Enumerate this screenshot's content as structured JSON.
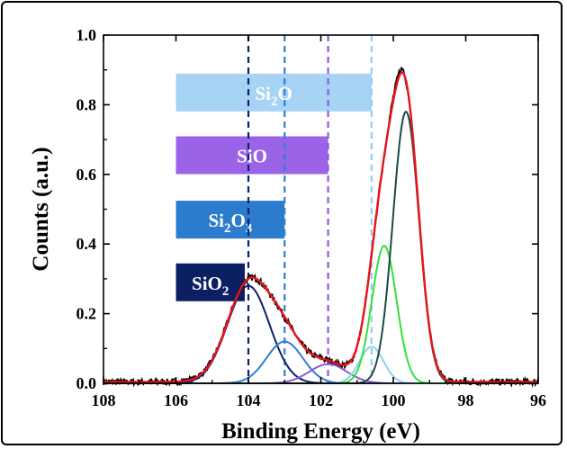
{
  "chart_data": {
    "type": "line",
    "xlabel": "Binding Energy (eV)",
    "ylabel": "Counts (a.u.)",
    "xlim": [
      108,
      96
    ],
    "ylim": [
      0,
      1.0
    ],
    "x_reversed": true,
    "x_ticks": [
      "108",
      "106",
      "104",
      "102",
      "100",
      "98",
      "96"
    ],
    "x_tick_values": [
      108,
      106,
      104,
      102,
      100,
      98,
      96
    ],
    "y_ticks": [
      "0.0",
      "0.2",
      "0.4",
      "0.6",
      "0.8",
      "1.0"
    ],
    "y_tick_values": [
      0.0,
      0.2,
      0.4,
      0.6,
      0.8,
      1.0
    ],
    "grid": false,
    "colors": {
      "raw": "#000000",
      "fit": "#e8141b",
      "sio2": "#0d1f6b",
      "si2o3": "#2f7fd1",
      "sio": "#9159e0",
      "si2o": "#8ccff2",
      "si_green": "#33e03a",
      "si_dark": "#1c4a44"
    },
    "components": [
      {
        "id": "sio2",
        "center": 104.0,
        "height": 0.28,
        "sigma": 0.58
      },
      {
        "id": "si2o3",
        "center": 103.0,
        "height": 0.12,
        "sigma": 0.5
      },
      {
        "id": "sio",
        "center": 101.8,
        "height": 0.055,
        "sigma": 0.52
      },
      {
        "id": "si2o",
        "center": 100.6,
        "height": 0.105,
        "sigma": 0.33
      },
      {
        "id": "si_green",
        "center": 100.25,
        "height": 0.395,
        "sigma": 0.34
      },
      {
        "id": "si_dark",
        "center": 99.65,
        "height": 0.78,
        "sigma": 0.36
      }
    ],
    "reference_lines": [
      {
        "id": "sio2",
        "x": 104.0
      },
      {
        "id": "si2o3",
        "x": 103.0
      },
      {
        "id": "sio",
        "x": 101.8
      },
      {
        "id": "si2o",
        "x": 100.6
      }
    ],
    "bands": [
      {
        "id": "si2o",
        "label": "Si",
        "sub1": "2",
        "mid": "O",
        "sub2": "",
        "x_start": 106.0,
        "x_end": 100.6,
        "y_center": 0.835,
        "color": "#a7d3f4"
      },
      {
        "id": "sio",
        "label": "SiO",
        "sub1": "",
        "mid": "",
        "sub2": "",
        "x_start": 106.0,
        "x_end": 101.8,
        "y_center": 0.655,
        "color": "#9b63e8"
      },
      {
        "id": "si2o3",
        "label": "Si",
        "sub1": "2",
        "mid": "O",
        "sub2": "3",
        "x_start": 106.0,
        "x_end": 103.0,
        "y_center": 0.47,
        "color": "#2b7ccd"
      },
      {
        "id": "sio2",
        "label": "SiO",
        "sub1": "",
        "mid": "",
        "sub2": "2",
        "x_start": 106.0,
        "x_end": 104.1,
        "y_center": 0.29,
        "color": "#0d1f63"
      }
    ]
  }
}
